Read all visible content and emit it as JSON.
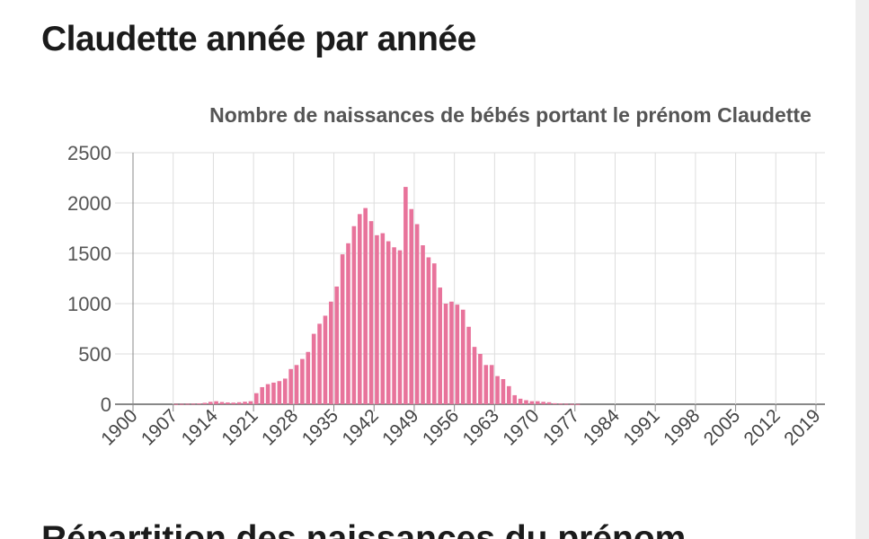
{
  "page": {
    "heading": "Claudette année par année",
    "next_heading": "Répartition des naissances du prénom"
  },
  "colors": {
    "bar": "#e8739b",
    "grid": "#dddddd",
    "axis": "#888888"
  },
  "chart_data": {
    "type": "bar",
    "title": "Nombre de naissances de bébés portant le prénom Claudette",
    "xlabel": "",
    "ylabel": "",
    "xlim": [
      1900,
      2019
    ],
    "ylim": [
      0,
      2500
    ],
    "grid": true,
    "legend": "none",
    "y_ticks": [
      "0",
      "500",
      "1000",
      "1500",
      "2000",
      "2500"
    ],
    "x_ticks": [
      "1900",
      "1907",
      "1914",
      "1921",
      "1928",
      "1935",
      "1942",
      "1949",
      "1956",
      "1963",
      "1970",
      "1977",
      "1984",
      "1991",
      "1998",
      "2005",
      "2012",
      "2019"
    ],
    "years": [
      1900,
      1901,
      1902,
      1903,
      1904,
      1905,
      1906,
      1907,
      1908,
      1909,
      1910,
      1911,
      1912,
      1913,
      1914,
      1915,
      1916,
      1917,
      1918,
      1919,
      1920,
      1921,
      1922,
      1923,
      1924,
      1925,
      1926,
      1927,
      1928,
      1929,
      1930,
      1931,
      1932,
      1933,
      1934,
      1935,
      1936,
      1937,
      1938,
      1939,
      1940,
      1941,
      1942,
      1943,
      1944,
      1945,
      1946,
      1947,
      1948,
      1949,
      1950,
      1951,
      1952,
      1953,
      1954,
      1955,
      1956,
      1957,
      1958,
      1959,
      1960,
      1961,
      1962,
      1963,
      1964,
      1965,
      1966,
      1967,
      1968,
      1969,
      1970,
      1971,
      1972,
      1973,
      1974,
      1975,
      1976,
      1977,
      1978,
      1979,
      1980,
      1981,
      1982,
      1983,
      1984,
      1985,
      1986,
      1987,
      1988,
      1989,
      1990,
      1991,
      1992,
      1993,
      1994,
      1995,
      1996,
      1997,
      1998,
      1999,
      2000,
      2001,
      2002,
      2003,
      2004,
      2005,
      2006,
      2007,
      2008,
      2009,
      2010,
      2011,
      2012,
      2013,
      2014,
      2015,
      2016,
      2017,
      2018,
      2019
    ],
    "values": [
      0,
      0,
      0,
      0,
      0,
      0,
      0,
      3,
      4,
      5,
      6,
      8,
      14,
      24,
      30,
      22,
      18,
      16,
      20,
      25,
      30,
      110,
      170,
      200,
      215,
      230,
      255,
      350,
      390,
      450,
      520,
      700,
      800,
      880,
      1020,
      1170,
      1490,
      1600,
      1770,
      1890,
      1950,
      1820,
      1680,
      1700,
      1620,
      1560,
      1530,
      2160,
      1940,
      1790,
      1580,
      1460,
      1400,
      1160,
      1000,
      1020,
      990,
      940,
      770,
      570,
      500,
      390,
      390,
      280,
      250,
      180,
      90,
      55,
      40,
      30,
      30,
      24,
      20,
      10,
      7,
      5,
      3,
      2,
      0,
      0,
      0,
      0,
      0,
      0,
      0,
      0,
      0,
      0,
      0,
      0,
      0,
      0,
      0,
      0,
      0,
      0,
      0,
      0,
      0,
      0,
      0,
      0,
      0,
      0,
      0,
      0,
      0,
      0,
      0,
      0,
      0,
      0,
      0,
      0,
      0,
      0,
      0,
      0,
      0,
      0
    ]
  }
}
